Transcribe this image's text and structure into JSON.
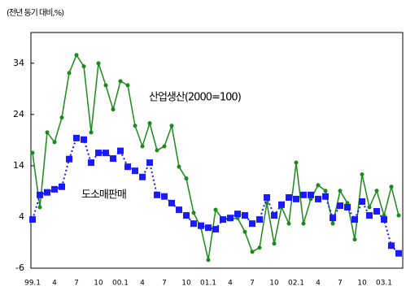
{
  "chart_data": {
    "type": "line",
    "y_label": "(전년 동기 대비,%)",
    "annotations": [
      "산업생산(2000=100)",
      "도소매판매"
    ],
    "categories": [
      "99.1",
      null,
      null,
      "4",
      null,
      null,
      "7",
      null,
      null,
      "10",
      null,
      null,
      "00.1",
      null,
      null,
      "4",
      null,
      null,
      "7",
      null,
      null,
      "10",
      null,
      null,
      "01.1",
      null,
      null,
      "4",
      null,
      null,
      "7",
      null,
      null,
      "10",
      null,
      null,
      "02.1",
      null,
      null,
      "4",
      null,
      null,
      "7",
      null,
      null,
      "10",
      null,
      null,
      "03.1",
      null,
      null
    ],
    "series": [
      {
        "name": "산업생산(2000=100)",
        "color": "#1a8a1a",
        "marker": "circle",
        "values": [
          16.5,
          5.9,
          20.5,
          18.6,
          23.4,
          32.1,
          35.6,
          33.4,
          20.5,
          34,
          29.7,
          25,
          30.5,
          29.7,
          21.8,
          17.8,
          22.3,
          17,
          17.8,
          21.8,
          13.8,
          11.5,
          4.8,
          1.9,
          -4.4,
          5.4,
          3.5,
          3.5,
          3.8,
          1.1,
          -2.8,
          -2,
          6.7,
          -1.2,
          5.9,
          2.7,
          14.6,
          2.7,
          7.5,
          10.2,
          9.1,
          2.7,
          9.1,
          6.7,
          -0.4,
          12.3,
          5.9,
          9.1,
          4.3,
          9.9,
          4.3
        ]
      },
      {
        "name": "도소매판매",
        "color": "#1a1aff",
        "marker": "square",
        "values": [
          3.5,
          8.3,
          8.8,
          9.4,
          9.9,
          15.3,
          19.4,
          19.1,
          14.6,
          16.5,
          16.5,
          15.4,
          16.9,
          13.8,
          13,
          11.8,
          14.6,
          8.3,
          8,
          6.7,
          5.4,
          4.3,
          2.7,
          2.3,
          1.9,
          1.6,
          3.5,
          3.8,
          4.6,
          4.3,
          2.7,
          3.5,
          7.8,
          4.3,
          6.4,
          7.8,
          7.5,
          8.3,
          8.3,
          7.5,
          8,
          3.8,
          6.2,
          5.9,
          3.5,
          7,
          4.3,
          5.1,
          3.5,
          -1.6,
          -3.1
        ]
      }
    ],
    "ylim": [
      -6,
      40
    ],
    "yticks": [
      34,
      24,
      14,
      4,
      -6
    ]
  }
}
